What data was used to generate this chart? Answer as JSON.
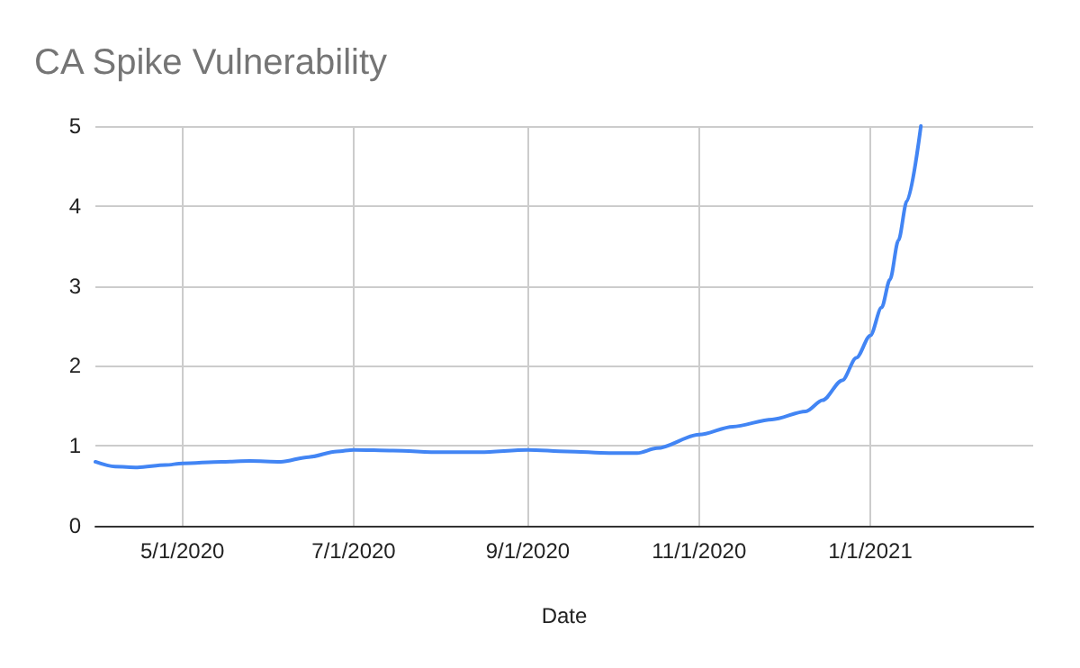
{
  "chart_data": {
    "type": "line",
    "title": "CA Spike Vulnerability",
    "xlabel": "Date",
    "xlim": [
      "2020-03-31",
      "2021-02-28"
    ],
    "xticks": [
      {
        "value": "2020-05-01",
        "label": "5/1/2020"
      },
      {
        "value": "2020-07-01",
        "label": "7/1/2020"
      },
      {
        "value": "2020-09-01",
        "label": "9/1/2020"
      },
      {
        "value": "2020-11-01",
        "label": "11/1/2020"
      },
      {
        "value": "2021-01-01",
        "label": "1/1/2021"
      }
    ],
    "ylim": [
      0,
      5
    ],
    "yticks": [
      0,
      1,
      2,
      3,
      4,
      5
    ],
    "grid": true,
    "marker": "none",
    "line_style": "solid",
    "x": [
      "2020-03-31",
      "2020-04-07",
      "2020-04-15",
      "2020-04-25",
      "2020-05-01",
      "2020-05-15",
      "2020-05-25",
      "2020-06-05",
      "2020-06-15",
      "2020-06-25",
      "2020-07-01",
      "2020-07-15",
      "2020-08-01",
      "2020-08-15",
      "2020-09-01",
      "2020-09-15",
      "2020-09-30",
      "2020-10-10",
      "2020-10-17",
      "2020-11-01",
      "2020-11-13",
      "2020-11-27",
      "2020-12-09",
      "2020-12-15",
      "2020-12-22",
      "2020-12-27",
      "2021-01-01",
      "2021-01-05",
      "2021-01-08",
      "2021-01-11",
      "2021-01-14",
      "2021-01-19"
    ],
    "series": [
      {
        "color": "#4285f4",
        "values": [
          0.8,
          0.74,
          0.73,
          0.76,
          0.78,
          0.8,
          0.81,
          0.8,
          0.86,
          0.93,
          0.95,
          0.94,
          0.92,
          0.92,
          0.95,
          0.93,
          0.91,
          0.91,
          0.97,
          1.14,
          1.24,
          1.33,
          1.43,
          1.57,
          1.82,
          2.1,
          2.38,
          2.73,
          3.08,
          3.57,
          4.06,
          5.0
        ]
      }
    ]
  }
}
